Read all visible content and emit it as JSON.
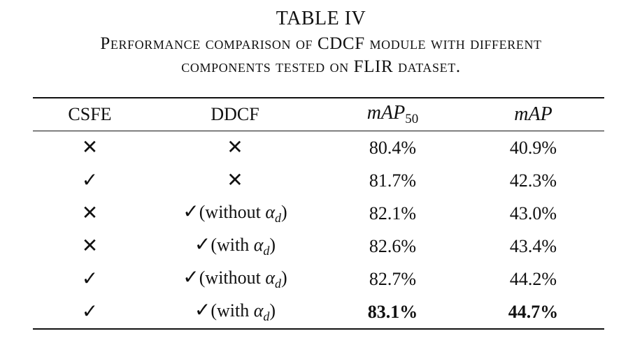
{
  "caption": {
    "label": "TABLE IV",
    "line1": "Performance comparison of CDCF module with different",
    "line2": "components tested on FLIR dataset."
  },
  "table": {
    "headers": {
      "csfe": "CSFE",
      "ddcf": "DDCF",
      "map50_base": "mAP",
      "map50_sub": "50",
      "map": "mAP"
    },
    "rows": [
      {
        "csfe": "✕",
        "ddcf_mark": "✕",
        "ddcf_note_pre": "",
        "ddcf_alpha": "",
        "ddcf_sub": "",
        "ddcf_note_post": "",
        "map50": "80.4%",
        "map": "40.9%"
      },
      {
        "csfe": "✓",
        "ddcf_mark": "✕",
        "ddcf_note_pre": "",
        "ddcf_alpha": "",
        "ddcf_sub": "",
        "ddcf_note_post": "",
        "map50": "81.7%",
        "map": "42.3%"
      },
      {
        "csfe": "✕",
        "ddcf_mark": "✓",
        "ddcf_note_pre": "(without ",
        "ddcf_alpha": "α",
        "ddcf_sub": "d",
        "ddcf_note_post": ")",
        "map50": "82.1%",
        "map": "43.0%"
      },
      {
        "csfe": "✕",
        "ddcf_mark": "✓",
        "ddcf_note_pre": "(with ",
        "ddcf_alpha": "α",
        "ddcf_sub": "d",
        "ddcf_note_post": ")",
        "map50": "82.6%",
        "map": "43.4%"
      },
      {
        "csfe": "✓",
        "ddcf_mark": "✓",
        "ddcf_note_pre": "(without ",
        "ddcf_alpha": "α",
        "ddcf_sub": "d",
        "ddcf_note_post": ")",
        "map50": "82.7%",
        "map": "44.2%"
      },
      {
        "csfe": "✓",
        "ddcf_mark": "✓",
        "ddcf_note_pre": "(with ",
        "ddcf_alpha": "α",
        "ddcf_sub": "d",
        "ddcf_note_post": ")",
        "map50": "83.1%",
        "map": "44.7%",
        "bold": true
      }
    ]
  }
}
